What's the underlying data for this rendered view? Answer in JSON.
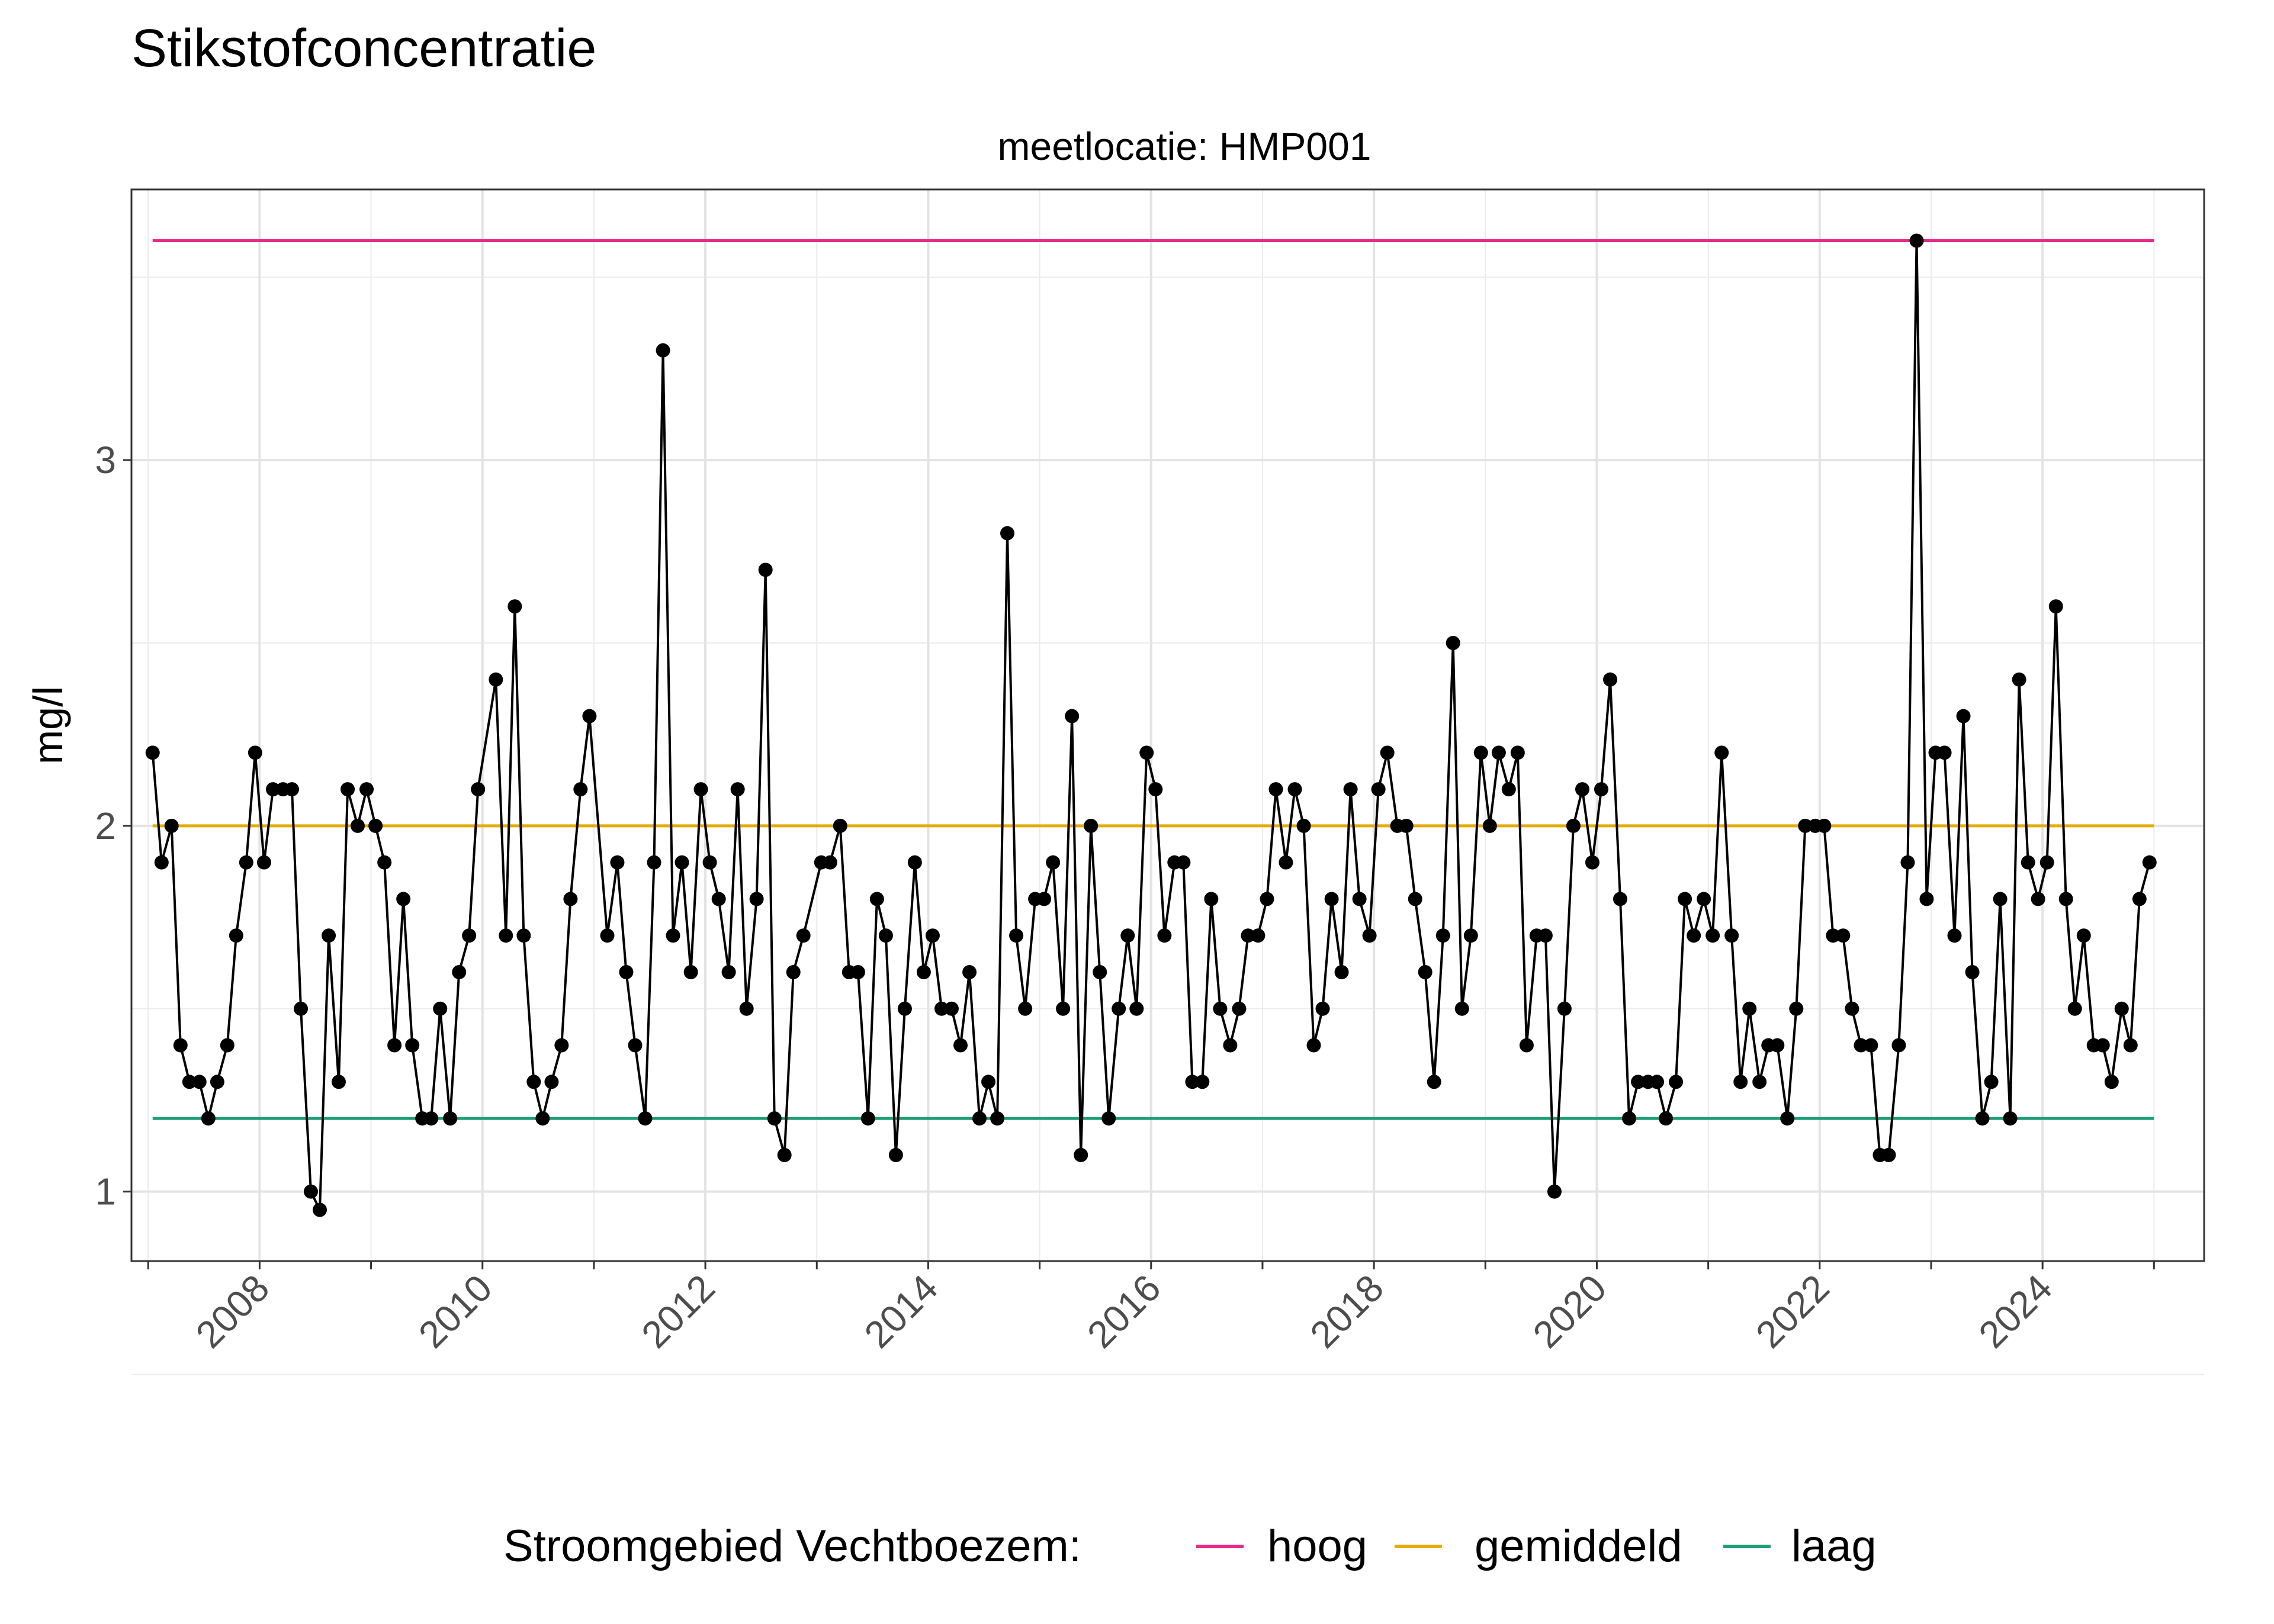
{
  "chart_data": {
    "type": "line",
    "title": "Stikstofconcentratie",
    "facet_label": "meetlocatie: HMP001",
    "xlabel": "",
    "ylabel": "mg/l",
    "x_ticks": [
      "2008",
      "2010",
      "2012",
      "2014",
      "2016",
      "2018",
      "2020",
      "2022",
      "2024"
    ],
    "y_ticks": [
      "1",
      "2",
      "3"
    ],
    "xlim": [
      2006.85,
      2025.45
    ],
    "ylim": [
      0.81,
      3.74
    ],
    "grid": true,
    "legend": {
      "title": "Stroomgebied Vechtboezem:",
      "position": "bottom",
      "items": [
        {
          "label": "hoog",
          "color": "#e7298a"
        },
        {
          "label": "gemiddeld",
          "color": "#e6ab02"
        },
        {
          "label": "laag",
          "color": "#1b9e77"
        }
      ]
    },
    "reference_lines": [
      {
        "name": "hoog",
        "value": 3.6,
        "color": "#e7298a",
        "x_from": 2007.04,
        "x_to": 2025.0
      },
      {
        "name": "gemiddeld",
        "value": 2.0,
        "color": "#e6ab02",
        "x_from": 2007.04,
        "x_to": 2025.0
      },
      {
        "name": "laag",
        "value": 1.2,
        "color": "#1b9e77",
        "x_from": 2007.04,
        "x_to": 2025.0
      }
    ],
    "series": [
      {
        "color": "#000000",
        "x": [
          2007.04,
          2007.12,
          2007.21,
          2007.29,
          2007.37,
          2007.46,
          2007.54,
          2007.62,
          2007.71,
          2007.79,
          2007.88,
          2007.96,
          2008.04,
          2008.12,
          2008.21,
          2008.29,
          2008.37,
          2008.46,
          2008.54,
          2008.62,
          2008.71,
          2008.79,
          2008.88,
          2008.96,
          2009.04,
          2009.12,
          2009.21,
          2009.29,
          2009.37,
          2009.46,
          2009.54,
          2009.62,
          2009.71,
          2009.79,
          2009.88,
          2009.96,
          2010.12,
          2010.21,
          2010.29,
          2010.37,
          2010.46,
          2010.54,
          2010.62,
          2010.71,
          2010.79,
          2010.88,
          2010.96,
          2011.12,
          2011.21,
          2011.29,
          2011.37,
          2011.46,
          2011.54,
          2011.62,
          2011.71,
          2011.79,
          2011.87,
          2011.96,
          2012.04,
          2012.12,
          2012.21,
          2012.29,
          2012.37,
          2012.46,
          2012.54,
          2012.62,
          2012.71,
          2012.79,
          2012.88,
          2013.04,
          2013.12,
          2013.21,
          2013.29,
          2013.37,
          2013.46,
          2013.54,
          2013.62,
          2013.71,
          2013.79,
          2013.88,
          2013.96,
          2014.04,
          2014.12,
          2014.21,
          2014.29,
          2014.37,
          2014.46,
          2014.54,
          2014.62,
          2014.71,
          2014.79,
          2014.87,
          2014.96,
          2015.04,
          2015.12,
          2015.21,
          2015.29,
          2015.37,
          2015.46,
          2015.54,
          2015.62,
          2015.71,
          2015.79,
          2015.87,
          2015.96,
          2016.04,
          2016.12,
          2016.21,
          2016.29,
          2016.37,
          2016.46,
          2016.54,
          2016.62,
          2016.71,
          2016.79,
          2016.87,
          2016.96,
          2017.04,
          2017.12,
          2017.21,
          2017.29,
          2017.37,
          2017.46,
          2017.54,
          2017.62,
          2017.71,
          2017.79,
          2017.87,
          2017.96,
          2018.04,
          2018.12,
          2018.21,
          2018.29,
          2018.37,
          2018.46,
          2018.54,
          2018.62,
          2018.71,
          2018.79,
          2018.87,
          2018.96,
          2019.04,
          2019.12,
          2019.21,
          2019.29,
          2019.37,
          2019.46,
          2019.54,
          2019.62,
          2019.71,
          2019.79,
          2019.87,
          2019.96,
          2020.04,
          2020.12,
          2020.21,
          2020.29,
          2020.37,
          2020.46,
          2020.54,
          2020.62,
          2020.71,
          2020.79,
          2020.87,
          2020.96,
          2021.04,
          2021.12,
          2021.21,
          2021.29,
          2021.37,
          2021.46,
          2021.54,
          2021.62,
          2021.71,
          2021.79,
          2021.87,
          2021.96,
          2022.04,
          2022.12,
          2022.21,
          2022.29,
          2022.37,
          2022.46,
          2022.54,
          2022.62,
          2022.71,
          2022.79,
          2022.87,
          2022.96,
          2023.04,
          2023.12,
          2023.21,
          2023.29,
          2023.37,
          2023.46,
          2023.54,
          2023.62,
          2023.71,
          2023.79,
          2023.87,
          2023.96,
          2024.04,
          2024.12,
          2024.21,
          2024.29,
          2024.37,
          2024.46,
          2024.54,
          2024.62,
          2024.71,
          2024.79,
          2024.87,
          2024.96
        ],
        "y": [
          2.2,
          1.9,
          2.0,
          1.4,
          1.3,
          1.3,
          1.2,
          1.3,
          1.4,
          1.7,
          1.9,
          2.2,
          1.9,
          2.1,
          2.1,
          2.1,
          1.5,
          1.0,
          0.95,
          1.7,
          1.3,
          2.1,
          2.0,
          2.1,
          2.0,
          1.9,
          1.4,
          1.8,
          1.4,
          1.2,
          1.2,
          1.5,
          1.2,
          1.6,
          1.7,
          2.1,
          2.4,
          1.7,
          2.6,
          1.7,
          1.3,
          1.2,
          1.3,
          1.4,
          1.8,
          2.1,
          2.3,
          1.7,
          1.9,
          1.6,
          1.4,
          1.2,
          1.9,
          3.3,
          1.7,
          1.9,
          1.6,
          2.1,
          1.9,
          1.8,
          1.6,
          2.1,
          1.5,
          1.8,
          2.7,
          1.2,
          1.1,
          1.6,
          1.7,
          1.9,
          1.9,
          2.0,
          1.6,
          1.6,
          1.2,
          1.8,
          1.7,
          1.1,
          1.5,
          1.9,
          1.6,
          1.7,
          1.5,
          1.5,
          1.4,
          1.6,
          1.2,
          1.3,
          1.2,
          2.8,
          1.7,
          1.5,
          1.8,
          1.8,
          1.9,
          1.5,
          2.3,
          1.1,
          2.0,
          1.6,
          1.2,
          1.5,
          1.7,
          1.5,
          2.2,
          2.1,
          1.7,
          1.9,
          1.9,
          1.3,
          1.3,
          1.8,
          1.5,
          1.4,
          1.5,
          1.7,
          1.7,
          1.8,
          2.1,
          1.9,
          2.1,
          2.0,
          1.4,
          1.5,
          1.8,
          1.6,
          2.1,
          1.8,
          1.7,
          2.1,
          2.2,
          2.0,
          2.0,
          1.8,
          1.6,
          1.3,
          1.7,
          2.5,
          1.5,
          1.7,
          2.2,
          2.0,
          2.2,
          2.1,
          2.2,
          1.4,
          1.7,
          1.7,
          1.0,
          1.5,
          2.0,
          2.1,
          1.9,
          2.1,
          2.4,
          1.8,
          1.2,
          1.3,
          1.3,
          1.3,
          1.2,
          1.3,
          1.8,
          1.7,
          1.8,
          1.7,
          2.2,
          1.7,
          1.3,
          1.5,
          1.3,
          1.4,
          1.4,
          1.2,
          1.5,
          2.0,
          2.0,
          2.0,
          1.7,
          1.7,
          1.5,
          1.4,
          1.4,
          1.1,
          1.1,
          1.4,
          1.9,
          3.6,
          1.8,
          2.2,
          2.2,
          1.7,
          2.3,
          1.6,
          1.2,
          1.3,
          1.8,
          1.2,
          2.4,
          1.9,
          1.8,
          1.9,
          2.6,
          1.8,
          1.5,
          1.7,
          1.4,
          1.4,
          1.3,
          1.5,
          1.4,
          1.8,
          1.9
        ]
      }
    ]
  }
}
